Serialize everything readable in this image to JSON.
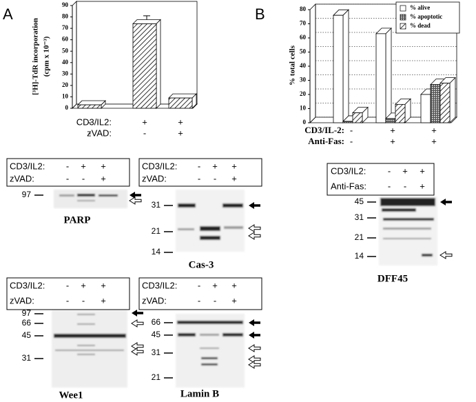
{
  "panel_labels": [
    "A",
    "B"
  ],
  "chart_data": [
    {
      "type": "bar",
      "y_label": [
        "[³H]-TdR incorporation",
        "(cpm x 10⁻³)"
      ],
      "values": [
        3,
        74,
        9
      ],
      "errors": [
        null,
        7,
        null
      ],
      "color": "#000000",
      "pattern": "diagonal",
      "ylim": [
        0,
        90
      ],
      "yticks": [
        0,
        10,
        20,
        30,
        40,
        50,
        60,
        70,
        80,
        90
      ],
      "conditions": [
        {
          "name": "CD3/IL2:",
          "values": [
            "-",
            "+",
            "+"
          ]
        },
        {
          "name": "zVAD:",
          "values": [
            "-",
            "-",
            "+"
          ]
        }
      ]
    },
    {
      "type": "grouped_bar",
      "y_label": "% total cells",
      "series": [
        {
          "name": "% alive",
          "color": "#ffffff",
          "pattern": "none",
          "values": [
            76,
            63,
            20
          ]
        },
        {
          "name": "% apoptotic",
          "color": "#000000",
          "pattern": "checker",
          "values": [
            1,
            3,
            27
          ]
        },
        {
          "name": "% dead",
          "color": "#000000",
          "pattern": "diagonal",
          "values": [
            7,
            13,
            28
          ]
        }
      ],
      "ylim": [
        0,
        80
      ],
      "yticks": [
        0,
        10,
        20,
        30,
        40,
        50,
        60,
        70,
        80
      ],
      "grid": true,
      "legend": "top-right",
      "conditions": [
        {
          "name": "CD3/IL-2:",
          "values": [
            "-",
            "+",
            "+"
          ]
        },
        {
          "name": "Anti-Fas:",
          "values": [
            "-",
            "+",
            "+"
          ]
        }
      ]
    }
  ],
  "blots": [
    {
      "name": "PARP",
      "markers": [
        "97"
      ],
      "conditions": [
        {
          "name": "CD3/IL2:",
          "values": [
            "-",
            "+",
            "+"
          ]
        },
        {
          "name": "zVAD:",
          "values": [
            "-",
            "-",
            "+"
          ]
        }
      ]
    },
    {
      "name": "Cas-3",
      "markers": [
        "31",
        "21",
        "14"
      ],
      "conditions": [
        {
          "name": "CD3/IL2:",
          "values": [
            "-",
            "+",
            "+"
          ]
        },
        {
          "name": "zVAD:",
          "values": [
            "-",
            "-",
            "+"
          ]
        }
      ]
    },
    {
      "name": "Wee1",
      "markers": [
        "97",
        "66",
        "45",
        "31"
      ],
      "conditions": [
        {
          "name": "CD3/IL2:",
          "values": [
            "-",
            "+",
            "+"
          ]
        },
        {
          "name": "zVAD:",
          "values": [
            "-",
            "-",
            "+"
          ]
        }
      ]
    },
    {
      "name": "Lamin B",
      "markers": [
        "66",
        "45",
        "31",
        "21"
      ],
      "conditions": [
        {
          "name": "CD3/IL2:",
          "values": [
            "-",
            "+",
            "+"
          ]
        },
        {
          "name": "zVAD:",
          "values": [
            "-",
            "-",
            "+"
          ]
        }
      ]
    },
    {
      "name": "DFF45",
      "markers": [
        "45",
        "31",
        "21",
        "14"
      ],
      "conditions": [
        {
          "name": "CD3/IL2:",
          "values": [
            "-",
            "+",
            "+"
          ]
        },
        {
          "name": "Anti-Fas:",
          "values": [
            "-",
            "-",
            "+"
          ]
        }
      ]
    }
  ]
}
